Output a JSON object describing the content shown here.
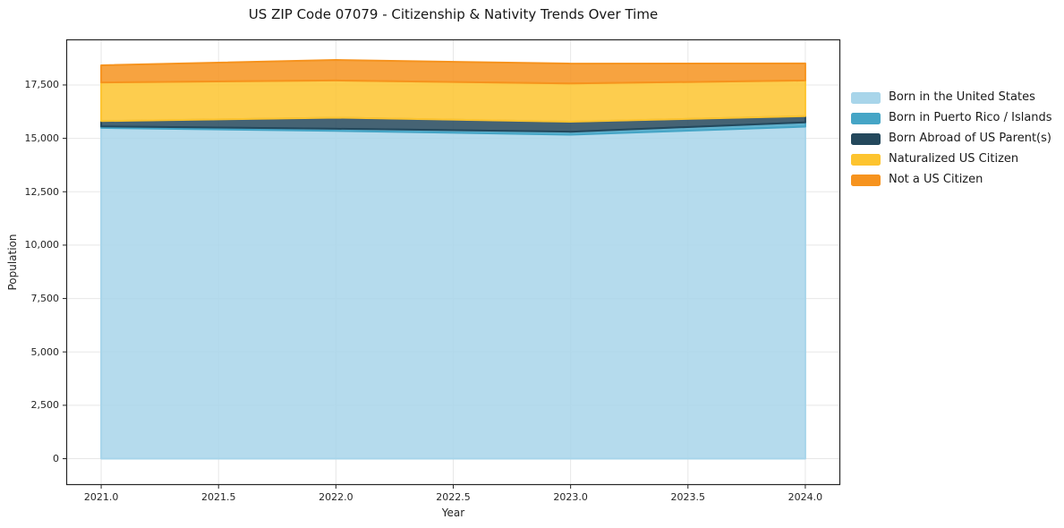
{
  "title": "US ZIP Code 07079 - Citizenship & Nativity Trends Over Time",
  "chart_data": {
    "type": "area",
    "stacked": true,
    "title": "US ZIP Code 07079 - Citizenship & Nativity Trends Over Time",
    "xlabel": "Year",
    "ylabel": "Population",
    "x": [
      2021,
      2022,
      2023,
      2024
    ],
    "series": [
      {
        "name": "Born in the United States",
        "slug": "born-in-us",
        "color": "#a8d5ea",
        "values": [
          15490,
          15350,
          15170,
          15550
        ]
      },
      {
        "name": "Born in Puerto Rico / Islands",
        "slug": "born-pr-islands",
        "color": "#45a5c6",
        "values": [
          70,
          100,
          140,
          200
        ]
      },
      {
        "name": "Born Abroad of US Parent(s)",
        "slug": "born-abroad",
        "color": "#24485c",
        "values": [
          250,
          520,
          470,
          290
        ]
      },
      {
        "name": "Naturalized US Citizen",
        "slug": "naturalized",
        "color": "#fdc42f",
        "values": [
          1810,
          1740,
          1790,
          1670
        ]
      },
      {
        "name": "Not a US Citizen",
        "slug": "not-citizen",
        "color": "#f6931e",
        "values": [
          800,
          960,
          930,
          800
        ]
      }
    ],
    "totals": [
      18420,
      18670,
      18500,
      18510
    ],
    "x_ticks": [
      {
        "label": "2021.0",
        "value": 2021.0
      },
      {
        "label": "2021.5",
        "value": 2021.5
      },
      {
        "label": "2022.0",
        "value": 2022.0
      },
      {
        "label": "2022.5",
        "value": 2022.5
      },
      {
        "label": "2023.0",
        "value": 2023.0
      },
      {
        "label": "2023.5",
        "value": 2023.5
      },
      {
        "label": "2024.0",
        "value": 2024.0
      }
    ],
    "y_ticks": [
      {
        "label": "0",
        "value": 0
      },
      {
        "label": "2,500",
        "value": 2500
      },
      {
        "label": "5,000",
        "value": 5000
      },
      {
        "label": "7,500",
        "value": 7500
      },
      {
        "label": "10,000",
        "value": 10000
      },
      {
        "label": "12,500",
        "value": 12500
      },
      {
        "label": "15,000",
        "value": 15000
      },
      {
        "label": "17,500",
        "value": 17500
      }
    ],
    "xlim": [
      2020.851,
      2024.149
    ],
    "ylim": [
      -1235,
      19635
    ],
    "grid": true,
    "grid_color": "#e7e7e7",
    "frame_color": "#262626",
    "fill_opacity": 0.85,
    "legend_position": "right-outside"
  }
}
